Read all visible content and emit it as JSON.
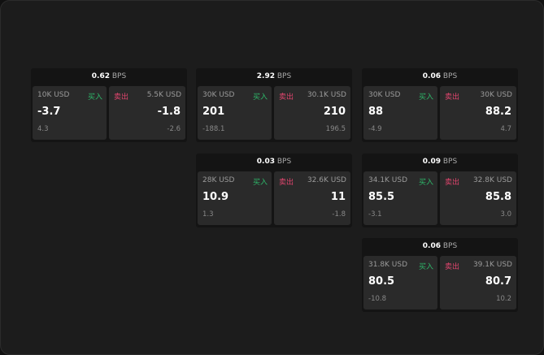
{
  "bps_unit": "BPS",
  "buy_label": "买入",
  "sell_label": "卖出",
  "colors": {
    "buy": "#2eb86a",
    "sell": "#e0456e"
  },
  "panels": [
    {
      "bps": "0.62",
      "buy": {
        "size": "10K USD",
        "price": "-3.7",
        "change": "4.3"
      },
      "sell": {
        "size": "5.5K USD",
        "price": "-1.8",
        "change": "-2.6"
      }
    },
    {
      "bps": "2.92",
      "buy": {
        "size": "30K USD",
        "price": "201",
        "change": "-188.1"
      },
      "sell": {
        "size": "30.1K USD",
        "price": "210",
        "change": "196.5"
      }
    },
    {
      "bps": "0.06",
      "buy": {
        "size": "30K USD",
        "price": "88",
        "change": "-4.9"
      },
      "sell": {
        "size": "30K USD",
        "price": "88.2",
        "change": "4.7"
      }
    },
    {
      "bps": "0.03",
      "buy": {
        "size": "28K USD",
        "price": "10.9",
        "change": "1.3"
      },
      "sell": {
        "size": "32.6K USD",
        "price": "11",
        "change": "-1.8"
      }
    },
    {
      "bps": "0.09",
      "buy": {
        "size": "34.1K USD",
        "price": "85.5",
        "change": "-3.1"
      },
      "sell": {
        "size": "32.8K USD",
        "price": "85.8",
        "change": "3.0"
      }
    },
    {
      "bps": "0.06",
      "buy": {
        "size": "31.8K USD",
        "price": "80.5",
        "change": "-10.8"
      },
      "sell": {
        "size": "39.1K USD",
        "price": "80.7",
        "change": "10.2"
      }
    }
  ]
}
